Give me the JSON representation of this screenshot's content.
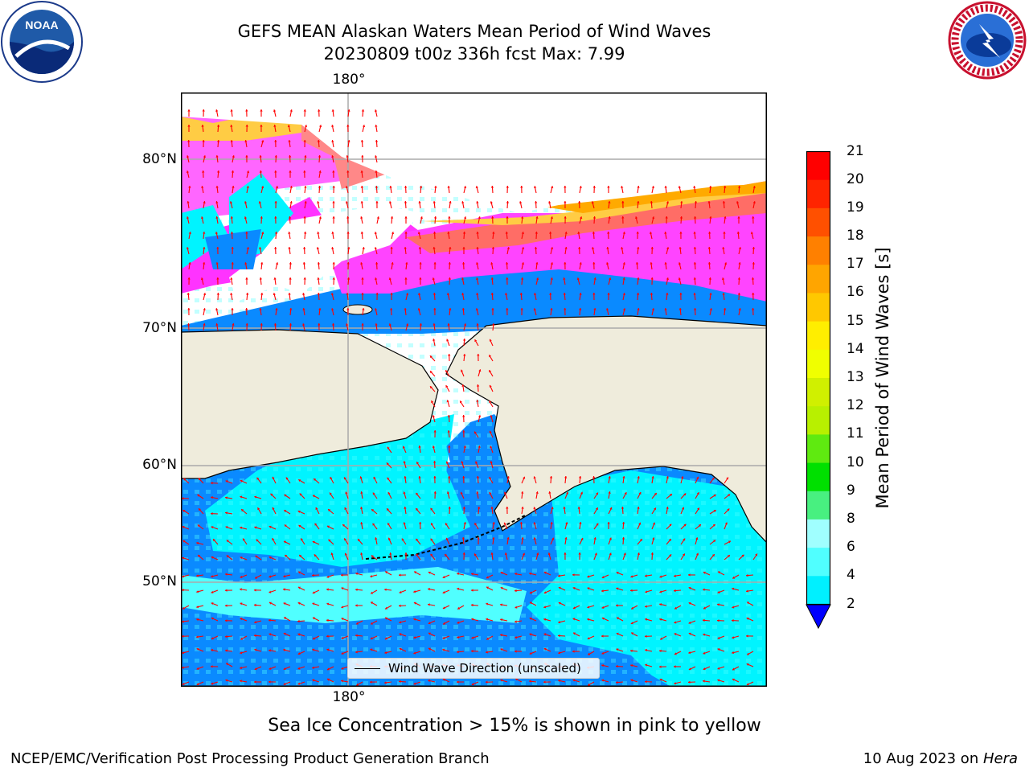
{
  "title": {
    "line1": "GEFS MEAN Alaskan Waters Mean Period of Wind Waves",
    "line2": "20230809 t00z 336h fcst   Max: 7.99"
  },
  "map": {
    "lon_labels": [
      "180°",
      "180°"
    ],
    "lat_labels": [
      "80°N",
      "70°N",
      "60°N",
      "50°N"
    ],
    "legend_text": "Wind Wave Direction (unscaled)",
    "land_color": "#efecdc",
    "arrow_color": "#ff0000"
  },
  "colorbar": {
    "title": "Mean Period of Wind Waves [s]",
    "ticks": [
      "21",
      "20",
      "19",
      "18",
      "17",
      "16",
      "15",
      "14",
      "13",
      "12",
      "11",
      "10",
      "9",
      "8",
      "6",
      "4",
      "2"
    ],
    "colors": [
      "#ff0000",
      "#ff2400",
      "#ff5000",
      "#ff8000",
      "#ffa500",
      "#ffc800",
      "#ffee00",
      "#f0ff00",
      "#d0f000",
      "#b8f000",
      "#5fea10",
      "#00e000",
      "#48f080",
      "#a0ffff",
      "#50ffff",
      "#00f0ff",
      "#0080ff"
    ],
    "extend_color": "#0000ff"
  },
  "logos": {
    "noaa_text": "NOAA",
    "nws_text": "NATIONAL WEATHER SERVICE"
  },
  "note": "Sea Ice Concentration > 15% is shown in pink to yellow",
  "footer": {
    "left": "NCEP/EMC/Verification Post Processing Product Generation Branch",
    "right_date": "10 Aug 2023 on ",
    "right_host": "Hera"
  }
}
